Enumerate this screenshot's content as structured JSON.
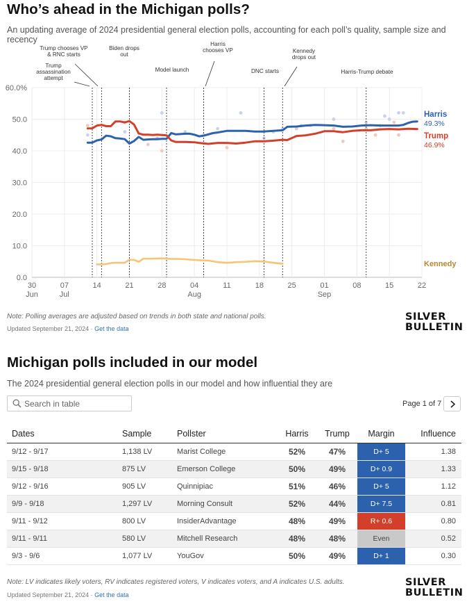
{
  "header": {
    "title": "Who’s ahead in the Michigan polls?",
    "subtitle": "An updating average of 2024 presidential general election polls, accounting for each poll’s quality, sample size and recency"
  },
  "chart_data": {
    "type": "line",
    "title": "Who’s ahead in the Michigan polls?",
    "xlabel": "",
    "ylabel": "",
    "x_start": "2024-06-30",
    "x_end": "2024-09-22",
    "x_ticks": [
      {
        "date": "2024-06-30",
        "label": "30",
        "month": "Jun"
      },
      {
        "date": "2024-07-07",
        "label": "07",
        "month": "Jul"
      },
      {
        "date": "2024-07-14",
        "label": "14",
        "month": ""
      },
      {
        "date": "2024-07-21",
        "label": "21",
        "month": ""
      },
      {
        "date": "2024-07-28",
        "label": "28",
        "month": ""
      },
      {
        "date": "2024-08-04",
        "label": "04",
        "month": "Aug"
      },
      {
        "date": "2024-08-11",
        "label": "11",
        "month": ""
      },
      {
        "date": "2024-08-18",
        "label": "18",
        "month": ""
      },
      {
        "date": "2024-08-25",
        "label": "25",
        "month": ""
      },
      {
        "date": "2024-09-01",
        "label": "01",
        "month": "Sep"
      },
      {
        "date": "2024-09-08",
        "label": "08",
        "month": ""
      },
      {
        "date": "2024-09-15",
        "label": "15",
        "month": ""
      },
      {
        "date": "2024-09-22",
        "label": "22",
        "month": ""
      }
    ],
    "y_ticks": [
      "60.0%",
      "50.0",
      "40.0",
      "30.0",
      "20.0",
      "10.0",
      "0.0"
    ],
    "ylim": [
      0,
      60
    ],
    "grid": true,
    "series": [
      {
        "name": "Harris",
        "color": "#2c62ad",
        "last_label": "49.3%",
        "x": [
          "2024-07-12",
          "2024-07-13",
          "2024-07-14",
          "2024-07-15",
          "2024-07-16",
          "2024-07-17",
          "2024-07-18",
          "2024-07-19",
          "2024-07-20",
          "2024-07-21",
          "2024-07-22",
          "2024-07-23",
          "2024-07-24",
          "2024-07-25",
          "2024-07-26",
          "2024-07-27",
          "2024-07-28",
          "2024-07-29",
          "2024-07-30",
          "2024-07-31",
          "2024-08-01",
          "2024-08-02",
          "2024-08-03",
          "2024-08-04",
          "2024-08-05",
          "2024-08-06",
          "2024-08-08",
          "2024-08-09",
          "2024-08-11",
          "2024-08-13",
          "2024-08-15",
          "2024-08-17",
          "2024-08-19",
          "2024-08-21",
          "2024-08-23",
          "2024-08-24",
          "2024-08-26",
          "2024-08-28",
          "2024-08-30",
          "2024-09-01",
          "2024-09-03",
          "2024-09-05",
          "2024-09-07",
          "2024-09-09",
          "2024-09-11",
          "2024-09-13",
          "2024-09-15",
          "2024-09-16",
          "2024-09-17",
          "2024-09-18",
          "2024-09-19",
          "2024-09-20",
          "2024-09-21"
        ],
        "y": [
          42.6,
          42.6,
          43.3,
          43.6,
          44.8,
          44.6,
          44.0,
          43.9,
          43.7,
          42.3,
          43.1,
          44.4,
          43.5,
          43.6,
          43.7,
          43.7,
          43.8,
          43.8,
          45.6,
          45.2,
          45.3,
          45.4,
          45.4,
          45.1,
          44.6,
          44.8,
          45.6,
          45.8,
          46.3,
          46.3,
          46.3,
          46.1,
          46.1,
          46.3,
          46.5,
          47.6,
          47.7,
          48.0,
          48.2,
          48.1,
          48.0,
          47.6,
          47.7,
          48.0,
          48.1,
          48.0,
          48.0,
          48.0,
          48.0,
          48.2,
          48.8,
          49.2,
          49.3
        ]
      },
      {
        "name": "Trump",
        "color": "#d2402c",
        "last_label": "46.9%",
        "x": [
          "2024-07-12",
          "2024-07-13",
          "2024-07-14",
          "2024-07-15",
          "2024-07-16",
          "2024-07-17",
          "2024-07-18",
          "2024-07-19",
          "2024-07-20",
          "2024-07-21",
          "2024-07-22",
          "2024-07-23",
          "2024-07-24",
          "2024-07-25",
          "2024-07-26",
          "2024-07-27",
          "2024-07-28",
          "2024-07-29",
          "2024-07-30",
          "2024-07-31",
          "2024-08-02",
          "2024-08-04",
          "2024-08-05",
          "2024-08-07",
          "2024-08-09",
          "2024-08-11",
          "2024-08-13",
          "2024-08-15",
          "2024-08-17",
          "2024-08-19",
          "2024-08-21",
          "2024-08-23",
          "2024-08-24",
          "2024-08-26",
          "2024-08-28",
          "2024-08-30",
          "2024-09-01",
          "2024-09-03",
          "2024-09-05",
          "2024-09-07",
          "2024-09-09",
          "2024-09-11",
          "2024-09-13",
          "2024-09-15",
          "2024-09-17",
          "2024-09-19",
          "2024-09-21"
        ],
        "y": [
          47.1,
          47.1,
          48.0,
          48.2,
          47.8,
          47.8,
          49.3,
          49.3,
          49.0,
          49.4,
          48.3,
          45.5,
          45.1,
          45.1,
          45.0,
          45.1,
          45.0,
          44.9,
          43.3,
          42.8,
          42.8,
          42.7,
          42.5,
          42.2,
          42.5,
          42.5,
          42.3,
          42.6,
          43.0,
          43.0,
          43.2,
          43.5,
          43.4,
          44.7,
          44.9,
          45.4,
          46.2,
          46.2,
          45.9,
          46.3,
          46.5,
          46.5,
          46.8,
          46.9,
          46.8,
          47.0,
          46.9
        ]
      },
      {
        "name": "Kennedy",
        "color": "#f5c477",
        "x": [
          "2024-07-14",
          "2024-07-15",
          "2024-07-16",
          "2024-07-17",
          "2024-07-18",
          "2024-07-19",
          "2024-07-20",
          "2024-07-21",
          "2024-07-22",
          "2024-07-23",
          "2024-07-24",
          "2024-07-26",
          "2024-07-28",
          "2024-07-30",
          "2024-08-01",
          "2024-08-03",
          "2024-08-05",
          "2024-08-07",
          "2024-08-09",
          "2024-08-11",
          "2024-08-13",
          "2024-08-15",
          "2024-08-17",
          "2024-08-19",
          "2024-08-21",
          "2024-08-23"
        ],
        "y": [
          4.1,
          4.1,
          4.2,
          4.5,
          4.6,
          4.6,
          4.6,
          5.6,
          5.5,
          4.9,
          5.9,
          5.9,
          6.0,
          5.8,
          5.8,
          5.6,
          5.4,
          5.3,
          4.8,
          4.6,
          4.8,
          4.9,
          5.1,
          5.0,
          4.6,
          4.3
        ]
      }
    ],
    "events": [
      {
        "date": "2024-07-13",
        "label": [
          "Trump",
          "assassination",
          "attempt"
        ]
      },
      {
        "date": "2024-07-15",
        "label": [
          "Trump chooses VP",
          "& RNC starts"
        ]
      },
      {
        "date": "2024-07-21",
        "label": [
          "Biden drops",
          "out"
        ]
      },
      {
        "date": "2024-07-29",
        "label": [
          "Model launch"
        ]
      },
      {
        "date": "2024-08-06",
        "label": [
          "Harris",
          "chooses VP"
        ]
      },
      {
        "date": "2024-08-19",
        "label": [
          "DNC starts"
        ]
      },
      {
        "date": "2024-08-23",
        "label": [
          "Kennedy",
          "drops out"
        ]
      },
      {
        "date": "2024-09-10",
        "label": [
          "Harris-Trump debate"
        ]
      }
    ],
    "polls": [
      {
        "d": "2024-07-12",
        "s": "h",
        "v": 45
      },
      {
        "d": "2024-07-12",
        "s": "t",
        "v": 48
      },
      {
        "d": "2024-07-20",
        "s": "h",
        "v": 46
      },
      {
        "d": "2024-07-20",
        "s": "t",
        "v": 49
      },
      {
        "d": "2024-07-25",
        "s": "t",
        "v": 42
      },
      {
        "d": "2024-07-27",
        "s": "h",
        "v": 44
      },
      {
        "d": "2024-07-28",
        "s": "h",
        "v": 52
      },
      {
        "d": "2024-07-28",
        "s": "t",
        "v": 40
      },
      {
        "d": "2024-08-02",
        "s": "h",
        "v": 46
      },
      {
        "d": "2024-08-06",
        "s": "h",
        "v": 45
      },
      {
        "d": "2024-08-09",
        "s": "h",
        "v": 47
      },
      {
        "d": "2024-08-11",
        "s": "t",
        "v": 41
      },
      {
        "d": "2024-08-14",
        "s": "h",
        "v": 52
      },
      {
        "d": "2024-08-19",
        "s": "h",
        "v": 44
      },
      {
        "d": "2024-08-21",
        "s": "h",
        "v": 46
      },
      {
        "d": "2024-08-23",
        "s": "h",
        "v": 47
      },
      {
        "d": "2024-08-26",
        "s": "t",
        "v": 47
      },
      {
        "d": "2024-08-27",
        "s": "h",
        "v": 48
      },
      {
        "d": "2024-08-29",
        "s": "t",
        "v": 48
      },
      {
        "d": "2024-09-03",
        "s": "h",
        "v": 50
      },
      {
        "d": "2024-09-03",
        "s": "t",
        "v": 47
      },
      {
        "d": "2024-09-05",
        "s": "t",
        "v": 43
      },
      {
        "d": "2024-09-10",
        "s": "h",
        "v": 49
      },
      {
        "d": "2024-09-10",
        "s": "t",
        "v": 47
      },
      {
        "d": "2024-09-12",
        "s": "t",
        "v": 45
      },
      {
        "d": "2024-09-13",
        "s": "h",
        "v": 48
      },
      {
        "d": "2024-09-14",
        "s": "h",
        "v": 51
      },
      {
        "d": "2024-09-15",
        "s": "h",
        "v": 50
      },
      {
        "d": "2024-09-16",
        "s": "t",
        "v": 49
      },
      {
        "d": "2024-09-17",
        "s": "h",
        "v": 52
      },
      {
        "d": "2024-09-17",
        "s": "t",
        "v": 45
      },
      {
        "d": "2024-09-18",
        "s": "h",
        "v": 52
      }
    ]
  },
  "chart_footer": {
    "note": "Note: Polling averages are adjusted based on trends in both state and national polls.",
    "updated": "Updated September 21, 2024 · ",
    "link": "Get the data"
  },
  "brand": {
    "line1": "SILVER",
    "line2": "BULLETIN"
  },
  "table_section": {
    "title": "Michigan polls included in our model",
    "subtitle": "The 2024 presidential general election polls in our model and how influential they are",
    "search_placeholder": "Search in table",
    "page_info": "Page 1 of 7",
    "columns": {
      "dates": "Dates",
      "sample": "Sample",
      "pollster": "Pollster",
      "harris": "Harris",
      "trump": "Trump",
      "margin": "Margin",
      "influence": "Influence"
    },
    "rows": [
      {
        "dates": "9/12 - 9/17",
        "sample": "1,138 LV",
        "pollster": "Marist College",
        "harris": "52%",
        "trump": "47%",
        "margin": "D+ 5",
        "margin_color": "#2c62ad",
        "influence": "1.38"
      },
      {
        "dates": "9/15 - 9/18",
        "sample": "875 LV",
        "pollster": "Emerson College",
        "harris": "50%",
        "trump": "49%",
        "margin": "D+ 0.9",
        "margin_color": "#2c62ad",
        "influence": "1.33"
      },
      {
        "dates": "9/12 - 9/16",
        "sample": "905 LV",
        "pollster": "Quinnipiac",
        "harris": "51%",
        "trump": "46%",
        "margin": "D+ 5",
        "margin_color": "#2c62ad",
        "influence": "1.12"
      },
      {
        "dates": "9/9 - 9/18",
        "sample": "1,297 LV",
        "pollster": "Morning Consult",
        "harris": "52%",
        "trump": "44%",
        "margin": "D+ 7.5",
        "margin_color": "#2c62ad",
        "influence": "0.81"
      },
      {
        "dates": "9/11 - 9/12",
        "sample": "800 LV",
        "pollster": "InsiderAdvantage",
        "harris": "48%",
        "trump": "49%",
        "margin": "R+ 0.6",
        "margin_color": "#d2402c",
        "influence": "0.80"
      },
      {
        "dates": "9/11 - 9/11",
        "sample": "580 LV",
        "pollster": "Mitchell Research",
        "harris": "48%",
        "trump": "48%",
        "margin": "Even",
        "margin_color": "#c9c9c9",
        "margin_text_color": "#444444",
        "influence": "0.52"
      },
      {
        "dates": "9/3 - 9/6",
        "sample": "1,077 LV",
        "pollster": "YouGov",
        "harris": "50%",
        "trump": "49%",
        "margin": "D+ 1",
        "margin_color": "#2c62ad",
        "influence": "0.30"
      }
    ]
  },
  "table_footer": {
    "note": "Note: LV indicates likely voters, RV indicates registered voters, V indicates voters, and A indicates U.S. adults.",
    "updated": "Updated September 21, 2024 · ",
    "link": "Get the data"
  }
}
